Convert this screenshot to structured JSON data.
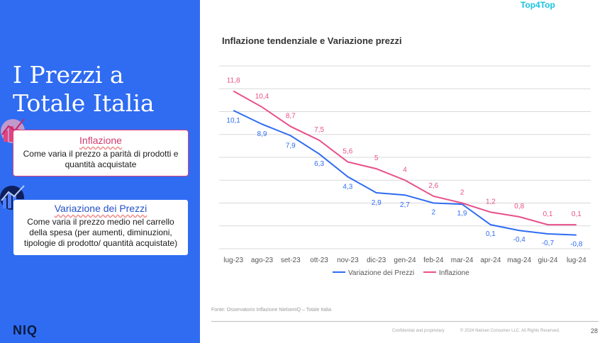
{
  "brand_tag": "Top4Top",
  "slide_title_line1": "I Prezzi a",
  "slide_title_line2": "Totale Italia",
  "card_inflazione": {
    "title": "Inflazione",
    "body": "Come varia il prezzo a parità di prodotti e quantità acquistate"
  },
  "card_variazione": {
    "title": "Variazione dei Prezzi",
    "body": "Come varia il prezzo medio nel carrello della spesa (per aumenti, diminuzioni, tipologie di prodotto/ quantità acquistate)"
  },
  "logo": "NIQ",
  "source": "Fonte: Osservatorio Inflazione NielsenIQ – Totale Italia",
  "footer": {
    "confidential": "Confidential and proprietary",
    "copyright": "© 2024 Nielsen Consumer LLC. All Rights Reserved.",
    "page": "28"
  },
  "chart_data": {
    "type": "line",
    "title": "Inflazione tendenziale e Variazione prezzi",
    "categories": [
      "lug-23",
      "ago-23",
      "set-23",
      "ott-23",
      "nov-23",
      "dic-23",
      "gen-24",
      "feb-24",
      "mar-24",
      "apr-24",
      "mag-24",
      "giu-24",
      "lug-24"
    ],
    "series": [
      {
        "name": "Variazione dei Prezzi",
        "color": "#2f6cf2",
        "values": [
          10.1,
          8.9,
          7.9,
          6.3,
          4.3,
          2.9,
          2.7,
          2,
          1.9,
          0.1,
          -0.4,
          -0.7,
          -0.8
        ],
        "labels": [
          "10,1",
          "8,9",
          "7,9",
          "6,3",
          "4,3",
          "2,9",
          "2,7",
          "2",
          "1,9",
          "0,1",
          "-0,4",
          "-0,7",
          "-0,8"
        ]
      },
      {
        "name": "Inflazione",
        "color": "#e8508a",
        "values": [
          11.8,
          10.4,
          8.7,
          7.5,
          5.6,
          5,
          4,
          2.6,
          2,
          1.2,
          0.8,
          0.1,
          0.1
        ],
        "labels": [
          "11,8",
          "10,4",
          "8,7",
          "7,5",
          "5,6",
          "5",
          "4",
          "2,6",
          "2",
          "1,2",
          "0,8",
          "0,1",
          "0,1"
        ]
      }
    ],
    "ylim": [
      -2,
      14
    ],
    "grid": true,
    "legend": "bottom"
  }
}
